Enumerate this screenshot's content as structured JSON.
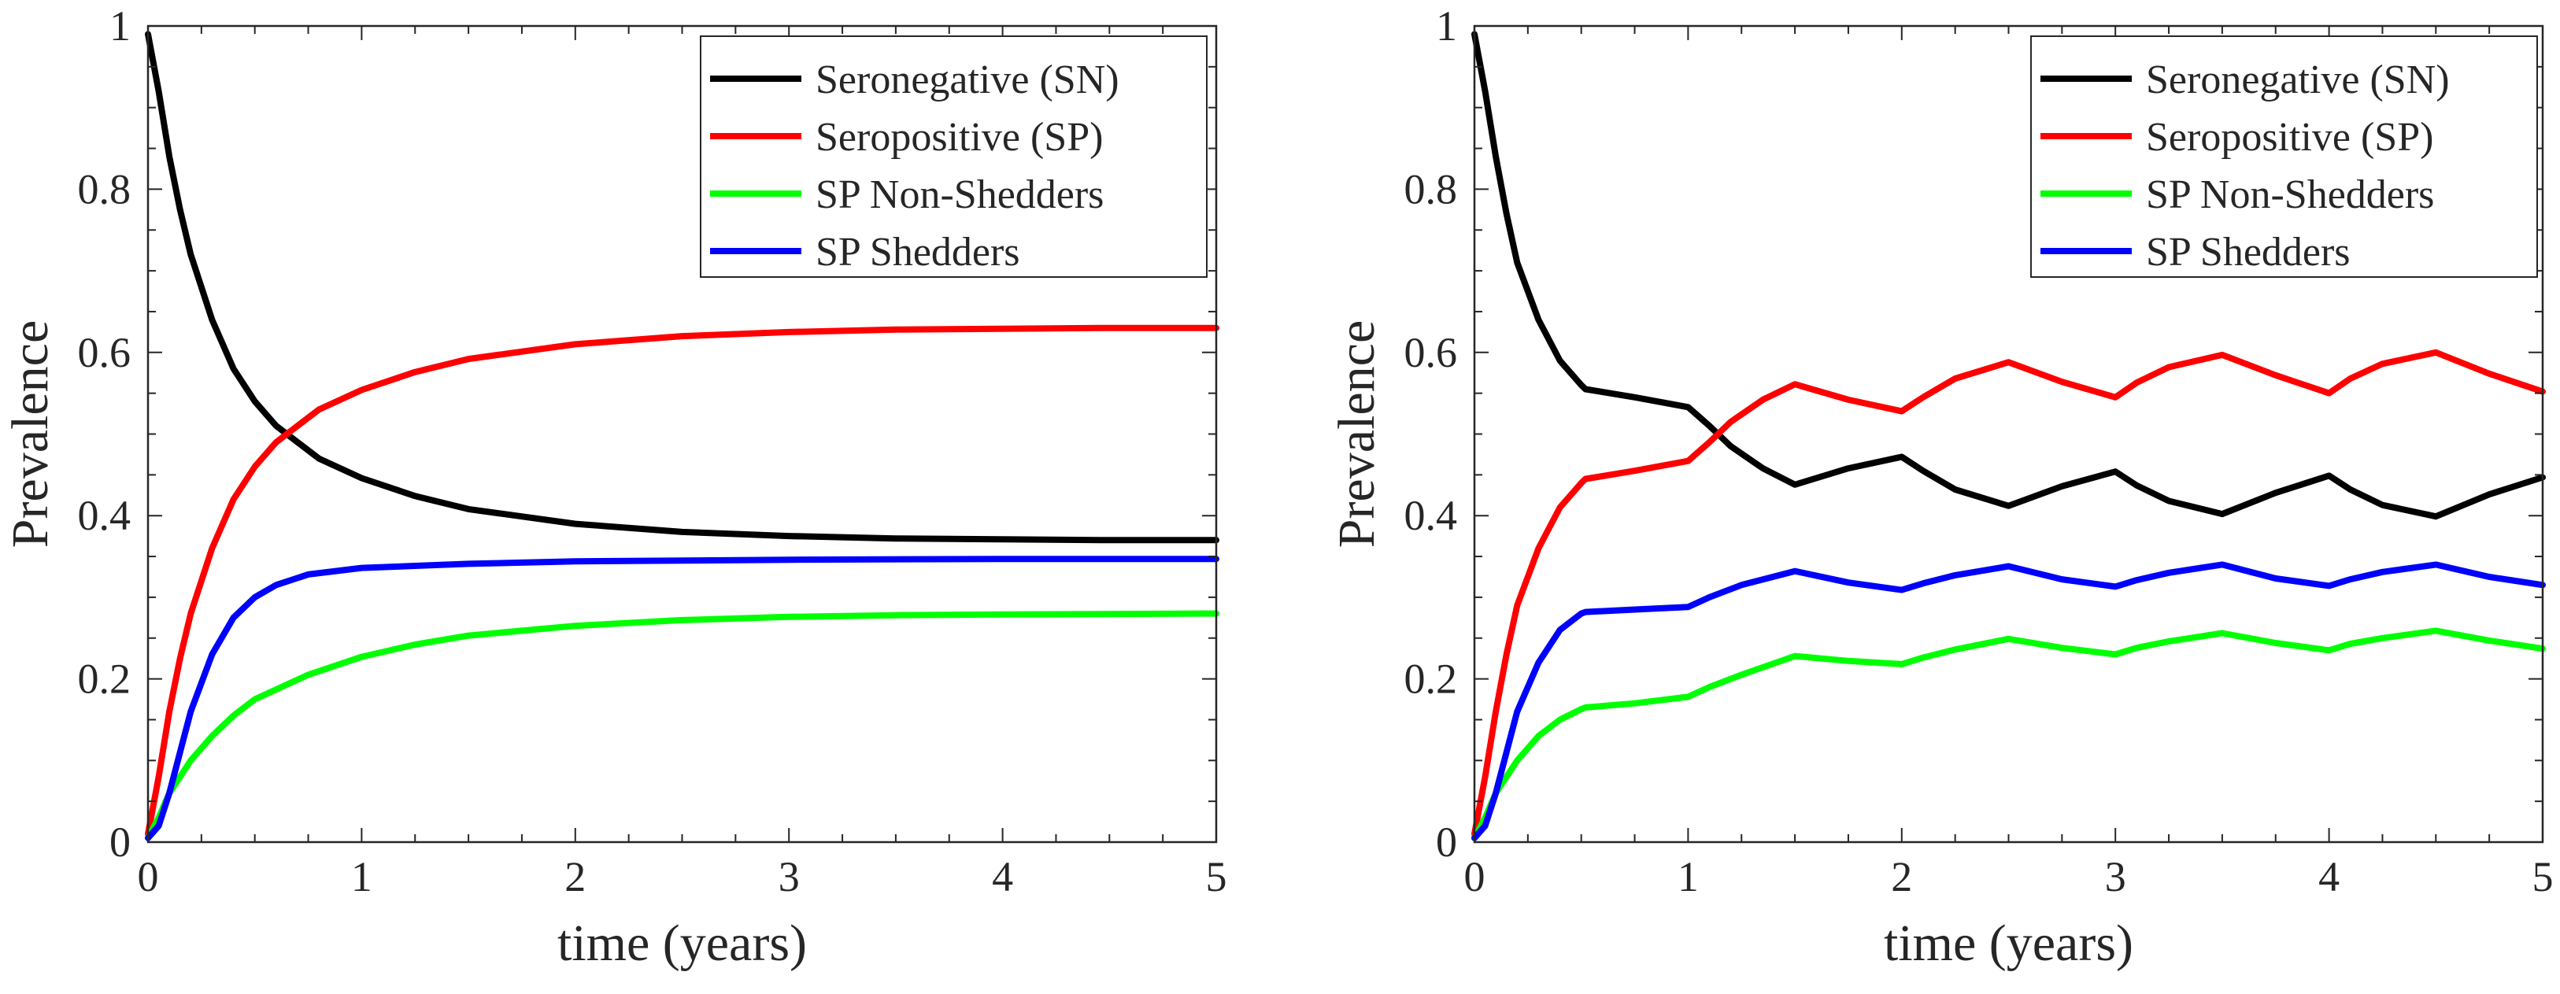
{
  "chart_data": [
    {
      "type": "line",
      "title": "",
      "xlabel": "time (years)",
      "ylabel": "Prevalence",
      "xlim": [
        0,
        5
      ],
      "ylim": [
        0,
        1
      ],
      "xticks": [
        0,
        1,
        2,
        3,
        4,
        5
      ],
      "yticks": [
        0,
        0.2,
        0.4,
        0.6,
        0.8,
        1
      ],
      "xtick_labels": [
        "0",
        "1",
        "2",
        "3",
        "4",
        "5"
      ],
      "ytick_labels": [
        "0",
        "0.2",
        "0.4",
        "0.6",
        "0.8",
        "1"
      ],
      "legend_position": "top-right",
      "series": [
        {
          "name": "Seronegative (SN)",
          "color": "#000000",
          "points": [
            [
              0,
              0.99
            ],
            [
              0.05,
              0.92
            ],
            [
              0.1,
              0.84
            ],
            [
              0.15,
              0.775
            ],
            [
              0.2,
              0.72
            ],
            [
              0.3,
              0.64
            ],
            [
              0.4,
              0.58
            ],
            [
              0.5,
              0.54
            ],
            [
              0.6,
              0.51
            ],
            [
              0.7,
              0.49
            ],
            [
              0.8,
              0.47
            ],
            [
              1,
              0.446
            ],
            [
              1.25,
              0.424
            ],
            [
              1.5,
              0.408
            ],
            [
              2,
              0.39
            ],
            [
              2.5,
              0.38
            ],
            [
              3,
              0.375
            ],
            [
              3.5,
              0.372
            ],
            [
              4,
              0.371
            ],
            [
              4.5,
              0.37
            ],
            [
              5,
              0.37
            ]
          ]
        },
        {
          "name": "Seropositive (SP)",
          "color": "#ff0000",
          "points": [
            [
              0,
              0.01
            ],
            [
              0.05,
              0.08
            ],
            [
              0.1,
              0.16
            ],
            [
              0.15,
              0.225
            ],
            [
              0.2,
              0.28
            ],
            [
              0.3,
              0.36
            ],
            [
              0.4,
              0.42
            ],
            [
              0.5,
              0.46
            ],
            [
              0.6,
              0.49
            ],
            [
              0.7,
              0.51
            ],
            [
              0.8,
              0.53
            ],
            [
              1,
              0.554
            ],
            [
              1.25,
              0.576
            ],
            [
              1.5,
              0.592
            ],
            [
              2,
              0.61
            ],
            [
              2.5,
              0.62
            ],
            [
              3,
              0.625
            ],
            [
              3.5,
              0.628
            ],
            [
              4,
              0.629
            ],
            [
              4.5,
              0.63
            ],
            [
              5,
              0.63
            ]
          ]
        },
        {
          "name": "SP Non-Shedders",
          "color": "#00ff00",
          "points": [
            [
              0,
              0.005
            ],
            [
              0.05,
              0.03
            ],
            [
              0.1,
              0.06
            ],
            [
              0.2,
              0.1
            ],
            [
              0.3,
              0.13
            ],
            [
              0.4,
              0.155
            ],
            [
              0.5,
              0.175
            ],
            [
              0.75,
              0.205
            ],
            [
              1,
              0.227
            ],
            [
              1.25,
              0.242
            ],
            [
              1.5,
              0.253
            ],
            [
              2,
              0.265
            ],
            [
              2.5,
              0.272
            ],
            [
              3,
              0.276
            ],
            [
              3.5,
              0.278
            ],
            [
              4,
              0.279
            ],
            [
              5,
              0.28
            ]
          ]
        },
        {
          "name": "SP Shedders",
          "color": "#0000ff",
          "points": [
            [
              0,
              0.005
            ],
            [
              0.05,
              0.02
            ],
            [
              0.1,
              0.06
            ],
            [
              0.15,
              0.11
            ],
            [
              0.2,
              0.16
            ],
            [
              0.3,
              0.23
            ],
            [
              0.4,
              0.275
            ],
            [
              0.5,
              0.3
            ],
            [
              0.6,
              0.315
            ],
            [
              0.75,
              0.328
            ],
            [
              1,
              0.336
            ],
            [
              1.5,
              0.341
            ],
            [
              2,
              0.344
            ],
            [
              3,
              0.346
            ],
            [
              4,
              0.347
            ],
            [
              5,
              0.347
            ]
          ]
        }
      ]
    },
    {
      "type": "line",
      "title": "",
      "xlabel": "time (years)",
      "ylabel": "Prevalence",
      "xlim": [
        0,
        5
      ],
      "ylim": [
        0,
        1
      ],
      "xticks": [
        0,
        1,
        2,
        3,
        4,
        5
      ],
      "yticks": [
        0,
        0.2,
        0.4,
        0.6,
        0.8,
        1
      ],
      "xtick_labels": [
        "0",
        "1",
        "2",
        "3",
        "4",
        "5"
      ],
      "ytick_labels": [
        "0",
        "0.2",
        "0.4",
        "0.6",
        "0.8",
        "1"
      ],
      "legend_position": "top-right",
      "series": [
        {
          "name": "Seronegative (SN)",
          "color": "#000000",
          "points": [
            [
              0,
              0.99
            ],
            [
              0.05,
              0.92
            ],
            [
              0.1,
              0.84
            ],
            [
              0.15,
              0.77
            ],
            [
              0.2,
              0.71
            ],
            [
              0.3,
              0.64
            ],
            [
              0.4,
              0.59
            ],
            [
              0.5,
              0.56
            ],
            [
              0.52,
              0.555
            ],
            [
              0.75,
              0.545
            ],
            [
              1,
              0.533
            ],
            [
              1.1,
              0.51
            ],
            [
              1.2,
              0.485
            ],
            [
              1.35,
              0.458
            ],
            [
              1.5,
              0.438
            ],
            [
              1.75,
              0.458
            ],
            [
              2,
              0.472
            ],
            [
              2.1,
              0.455
            ],
            [
              2.25,
              0.432
            ],
            [
              2.5,
              0.412
            ],
            [
              2.75,
              0.436
            ],
            [
              3,
              0.454
            ],
            [
              3.1,
              0.437
            ],
            [
              3.25,
              0.418
            ],
            [
              3.5,
              0.402
            ],
            [
              3.75,
              0.428
            ],
            [
              4,
              0.449
            ],
            [
              4.1,
              0.432
            ],
            [
              4.25,
              0.413
            ],
            [
              4.5,
              0.399
            ],
            [
              4.75,
              0.426
            ],
            [
              5,
              0.447
            ]
          ]
        },
        {
          "name": "Seropositive (SP)",
          "color": "#ff0000",
          "points": [
            [
              0,
              0.01
            ],
            [
              0.05,
              0.08
            ],
            [
              0.1,
              0.16
            ],
            [
              0.15,
              0.23
            ],
            [
              0.2,
              0.29
            ],
            [
              0.3,
              0.36
            ],
            [
              0.4,
              0.41
            ],
            [
              0.5,
              0.44
            ],
            [
              0.52,
              0.445
            ],
            [
              0.75,
              0.455
            ],
            [
              1,
              0.467
            ],
            [
              1.1,
              0.49
            ],
            [
              1.2,
              0.515
            ],
            [
              1.35,
              0.542
            ],
            [
              1.5,
              0.561
            ],
            [
              1.75,
              0.542
            ],
            [
              2,
              0.528
            ],
            [
              2.1,
              0.545
            ],
            [
              2.25,
              0.568
            ],
            [
              2.5,
              0.588
            ],
            [
              2.75,
              0.564
            ],
            [
              3,
              0.545
            ],
            [
              3.1,
              0.563
            ],
            [
              3.25,
              0.582
            ],
            [
              3.5,
              0.597
            ],
            [
              3.75,
              0.572
            ],
            [
              4,
              0.55
            ],
            [
              4.1,
              0.568
            ],
            [
              4.25,
              0.586
            ],
            [
              4.5,
              0.6
            ],
            [
              4.75,
              0.574
            ],
            [
              5,
              0.552
            ]
          ]
        },
        {
          "name": "SP Non-Shedders",
          "color": "#00ff00",
          "points": [
            [
              0,
              0.005
            ],
            [
              0.05,
              0.03
            ],
            [
              0.1,
              0.06
            ],
            [
              0.2,
              0.1
            ],
            [
              0.3,
              0.13
            ],
            [
              0.4,
              0.15
            ],
            [
              0.5,
              0.163
            ],
            [
              0.52,
              0.165
            ],
            [
              0.75,
              0.17
            ],
            [
              1,
              0.178
            ],
            [
              1.1,
              0.19
            ],
            [
              1.25,
              0.205
            ],
            [
              1.5,
              0.228
            ],
            [
              1.75,
              0.222
            ],
            [
              2,
              0.218
            ],
            [
              2.1,
              0.226
            ],
            [
              2.25,
              0.236
            ],
            [
              2.5,
              0.249
            ],
            [
              2.75,
              0.238
            ],
            [
              3,
              0.23
            ],
            [
              3.1,
              0.238
            ],
            [
              3.25,
              0.246
            ],
            [
              3.5,
              0.256
            ],
            [
              3.75,
              0.244
            ],
            [
              4,
              0.235
            ],
            [
              4.1,
              0.243
            ],
            [
              4.25,
              0.25
            ],
            [
              4.5,
              0.259
            ],
            [
              4.75,
              0.247
            ],
            [
              5,
              0.237
            ]
          ]
        },
        {
          "name": "SP Shedders",
          "color": "#0000ff",
          "points": [
            [
              0,
              0.005
            ],
            [
              0.05,
              0.02
            ],
            [
              0.1,
              0.06
            ],
            [
              0.15,
              0.11
            ],
            [
              0.2,
              0.16
            ],
            [
              0.3,
              0.22
            ],
            [
              0.4,
              0.26
            ],
            [
              0.5,
              0.28
            ],
            [
              0.52,
              0.282
            ],
            [
              0.75,
              0.285
            ],
            [
              1,
              0.288
            ],
            [
              1.1,
              0.3
            ],
            [
              1.25,
              0.315
            ],
            [
              1.5,
              0.332
            ],
            [
              1.75,
              0.318
            ],
            [
              2,
              0.309
            ],
            [
              2.1,
              0.317
            ],
            [
              2.25,
              0.327
            ],
            [
              2.5,
              0.338
            ],
            [
              2.75,
              0.322
            ],
            [
              3,
              0.313
            ],
            [
              3.1,
              0.321
            ],
            [
              3.25,
              0.33
            ],
            [
              3.5,
              0.34
            ],
            [
              3.75,
              0.323
            ],
            [
              4,
              0.314
            ],
            [
              4.1,
              0.322
            ],
            [
              4.25,
              0.331
            ],
            [
              4.5,
              0.34
            ],
            [
              4.75,
              0.325
            ],
            [
              5,
              0.315
            ]
          ]
        }
      ]
    }
  ]
}
